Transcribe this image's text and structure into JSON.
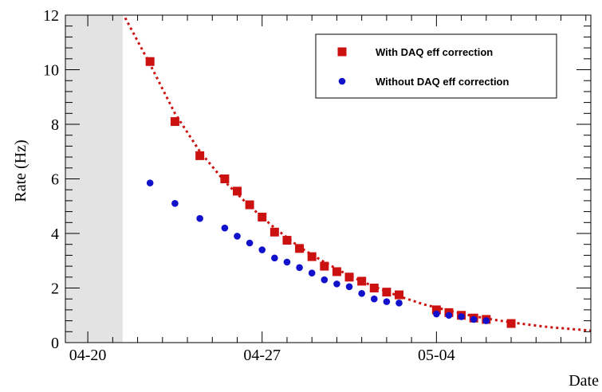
{
  "chart_data": {
    "type": "scatter",
    "xlabel": "Date",
    "ylabel": "Rate (Hz)",
    "x_tick_labels": [
      {
        "date": "2000-04-20",
        "label": "04-20"
      },
      {
        "date": "2000-04-27",
        "label": "04-27"
      },
      {
        "date": "2000-05-04",
        "label": "05-04"
      }
    ],
    "y_tick_labels": [
      "0",
      "2",
      "4",
      "6",
      "8",
      "10",
      "12"
    ],
    "xlim": [
      "2000-04-19.1",
      "2000-05-10.2"
    ],
    "ylim": [
      0,
      12
    ],
    "grid": false,
    "legend_position": "top-right",
    "shaded_region": {
      "x_start": "2000-04-19.1",
      "x_end": "2000-04-21.4",
      "color": "#e3e3e3"
    },
    "series": [
      {
        "name": "With DAQ eff correction",
        "marker": "square",
        "color": "#cc1111",
        "points": [
          [
            "2000-04-22.5",
            10.3
          ],
          [
            "2000-04-23.5",
            8.1
          ],
          [
            "2000-04-24.5",
            6.85
          ],
          [
            "2000-04-25.5",
            6.0
          ],
          [
            "2000-04-26.0",
            5.55
          ],
          [
            "2000-04-26.5",
            5.05
          ],
          [
            "2000-04-27.0",
            4.6
          ],
          [
            "2000-04-27.5",
            4.05
          ],
          [
            "2000-04-28.0",
            3.75
          ],
          [
            "2000-04-28.5",
            3.45
          ],
          [
            "2000-04-29.0",
            3.15
          ],
          [
            "2000-04-29.5",
            2.8
          ],
          [
            "2000-04-30.0",
            2.6
          ],
          [
            "2000-04-30.5",
            2.4
          ],
          [
            "2000-05-01.0",
            2.25
          ],
          [
            "2000-05-01.5",
            2.0
          ],
          [
            "2000-05-02.0",
            1.85
          ],
          [
            "2000-05-02.5",
            1.75
          ],
          [
            "2000-05-04.0",
            1.2
          ],
          [
            "2000-05-04.5",
            1.1
          ],
          [
            "2000-05-05.0",
            1.0
          ],
          [
            "2000-05-05.5",
            0.9
          ],
          [
            "2000-05-06.0",
            0.85
          ],
          [
            "2000-05-07.0",
            0.7
          ]
        ]
      },
      {
        "name": "Without DAQ eff correction",
        "marker": "circle",
        "color": "#1111cc",
        "points": [
          [
            "2000-04-22.5",
            5.85
          ],
          [
            "2000-04-23.5",
            5.1
          ],
          [
            "2000-04-24.5",
            4.55
          ],
          [
            "2000-04-25.5",
            4.2
          ],
          [
            "2000-04-26.0",
            3.9
          ],
          [
            "2000-04-26.5",
            3.65
          ],
          [
            "2000-04-27.0",
            3.4
          ],
          [
            "2000-04-27.5",
            3.1
          ],
          [
            "2000-04-28.0",
            2.95
          ],
          [
            "2000-04-28.5",
            2.75
          ],
          [
            "2000-04-29.0",
            2.55
          ],
          [
            "2000-04-29.5",
            2.3
          ],
          [
            "2000-04-30.0",
            2.15
          ],
          [
            "2000-04-30.5",
            2.05
          ],
          [
            "2000-05-01.0",
            1.8
          ],
          [
            "2000-05-01.5",
            1.6
          ],
          [
            "2000-05-02.0",
            1.5
          ],
          [
            "2000-05-02.5",
            1.45
          ],
          [
            "2000-05-04.0",
            1.05
          ],
          [
            "2000-05-04.5",
            1.0
          ],
          [
            "2000-05-05.0",
            0.95
          ],
          [
            "2000-05-05.5",
            0.85
          ],
          [
            "2000-05-06.0",
            0.8
          ]
        ]
      }
    ],
    "fit_curve": {
      "style": "dotted",
      "color": "#cc1111",
      "points": [
        [
          "2000-04-21.5",
          11.9
        ],
        [
          "2000-04-22.5",
          10.2
        ],
        [
          "2000-04-23.5",
          8.4
        ],
        [
          "2000-04-24.5",
          7.0
        ],
        [
          "2000-04-25.5",
          5.9
        ],
        [
          "2000-04-26.5",
          5.0
        ],
        [
          "2000-04-27.5",
          4.2
        ],
        [
          "2000-04-28.5",
          3.5
        ],
        [
          "2000-04-29.5",
          2.95
        ],
        [
          "2000-04-30.5",
          2.45
        ],
        [
          "2000-05-01.5",
          2.05
        ],
        [
          "2000-05-02.5",
          1.7
        ],
        [
          "2000-05-03.5",
          1.4
        ],
        [
          "2000-05-04.5",
          1.17
        ],
        [
          "2000-05-05.5",
          0.97
        ],
        [
          "2000-05-06.5",
          0.81
        ],
        [
          "2000-05-07.5",
          0.68
        ],
        [
          "2000-05-08.5",
          0.57
        ],
        [
          "2000-05-09.5",
          0.49
        ],
        [
          "2000-05-10.2",
          0.44
        ]
      ]
    }
  }
}
